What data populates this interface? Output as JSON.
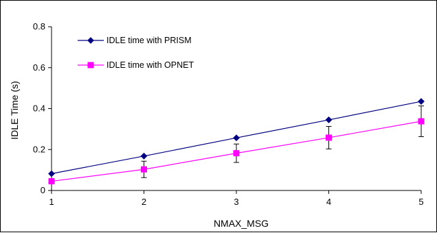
{
  "chart_data": {
    "type": "line",
    "title": "",
    "xlabel": "NMAX_MSG",
    "ylabel": "IDLE Time (s)",
    "x": [
      1,
      2,
      3,
      4,
      5
    ],
    "xlim": [
      1,
      5
    ],
    "ylim": [
      0,
      0.8
    ],
    "x_ticks": [
      "1",
      "2",
      "3",
      "4",
      "5"
    ],
    "y_ticks": [
      "0",
      "0.2",
      "0.4",
      "0.6",
      "0.8"
    ],
    "grid": false,
    "legend_position": "top-left",
    "series": [
      {
        "name": "IDLE time with PRISM",
        "values": [
          0.082,
          0.168,
          0.257,
          0.345,
          0.435
        ],
        "color": "#000080",
        "marker": "diamond"
      },
      {
        "name": "IDLE time with OPNET",
        "values": [
          0.045,
          0.103,
          0.182,
          0.258,
          0.338
        ],
        "error": [
          0.01,
          0.04,
          0.045,
          0.055,
          0.075
        ],
        "color": "#ff00ff",
        "marker": "square"
      }
    ]
  }
}
